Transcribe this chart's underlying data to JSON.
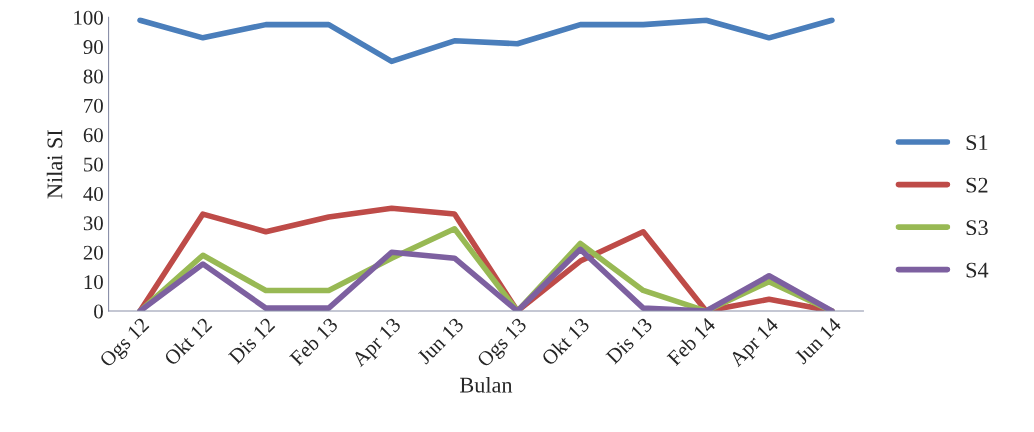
{
  "chart_data": {
    "type": "line",
    "xlabel": "Bulan",
    "ylabel": "Nilai SI",
    "categories": [
      "Ogs 12",
      "Okt 12",
      "Dis 12",
      "Feb 13",
      "Apr 13",
      "Jun 13",
      "Ogs 13",
      "Okt 13",
      "Dis 13",
      "Feb 14",
      "Apr 14",
      "Jun 14"
    ],
    "series": [
      {
        "name": "S1",
        "color": "#4a7ebb",
        "values": [
          99,
          93,
          97.5,
          97.5,
          85,
          92,
          91,
          97.5,
          97.5,
          99,
          93,
          99
        ]
      },
      {
        "name": "S2",
        "color": "#be4b48",
        "values": [
          0,
          33,
          27,
          32,
          35,
          33,
          0,
          17,
          27,
          0,
          4,
          0
        ]
      },
      {
        "name": "S3",
        "color": "#98b954",
        "values": [
          0,
          19,
          7,
          7,
          18,
          28,
          0,
          23,
          7,
          0,
          10,
          0
        ]
      },
      {
        "name": "S4",
        "color": "#7d60a0",
        "values": [
          0,
          16,
          1,
          1,
          20,
          18,
          0,
          21,
          1,
          0,
          12,
          0
        ]
      }
    ],
    "ylim": [
      0,
      100
    ],
    "yticks": [
      0,
      10,
      20,
      30,
      40,
      50,
      60,
      70,
      80,
      90,
      100
    ],
    "grid": false,
    "legend": "right",
    "marker": "none",
    "line_style": "solid"
  }
}
